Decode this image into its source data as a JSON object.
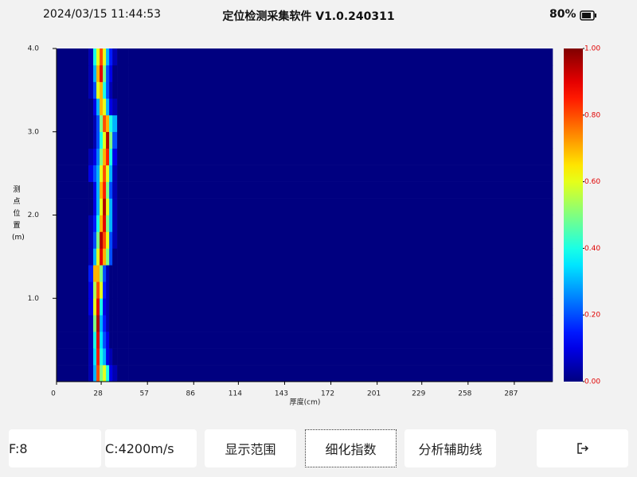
{
  "status_bar": {
    "datetime": "2024/03/15 11:44:53",
    "title": "定位检测采集软件 V1.0.240311",
    "battery": "80%"
  },
  "chart_data": {
    "type": "heatmap",
    "xlabel": "厚度(cm)",
    "ylabel": "测点位置(m)",
    "xlim": [
      0,
      311
    ],
    "xticks": [
      0,
      28,
      57,
      86,
      114,
      143,
      172,
      201,
      229,
      258,
      287
    ],
    "ylim": [
      0,
      4
    ],
    "yticks": [
      {
        "value": 1,
        "label": "1.0"
      },
      {
        "value": 2,
        "label": "2.0"
      },
      {
        "value": 3,
        "label": "3.0"
      },
      {
        "value": 4,
        "label": "4.0"
      }
    ],
    "xbins": [
      0,
      20,
      23,
      25,
      27,
      29,
      31,
      33,
      35,
      38,
      45,
      311
    ],
    "ybins": [
      0,
      0.2,
      0.4,
      0.6,
      0.8,
      1.0,
      1.2,
      1.4,
      1.6,
      1.8,
      2.0,
      2.2,
      2.4,
      2.6,
      2.8,
      3.0,
      3.2,
      3.4,
      3.6,
      3.8,
      4.0
    ],
    "values": [
      [
        0,
        0.05,
        0.3,
        0.8,
        0.5,
        0.6,
        0.4,
        0.1,
        0.05,
        0,
        0
      ],
      [
        0,
        0.05,
        0.35,
        0.85,
        0.4,
        0.3,
        0.1,
        0.05,
        0,
        0,
        0
      ],
      [
        0,
        0.05,
        0.4,
        0.9,
        0.35,
        0.2,
        0.1,
        0,
        0,
        0,
        0
      ],
      [
        0,
        0.05,
        0.5,
        0.95,
        0.3,
        0.15,
        0.05,
        0,
        0,
        0,
        0
      ],
      [
        0,
        0.1,
        0.6,
        0.9,
        0.4,
        0.1,
        0.05,
        0,
        0,
        0,
        0
      ],
      [
        0,
        0.1,
        0.55,
        0.8,
        0.6,
        0.15,
        0.05,
        0,
        0,
        0,
        0
      ],
      [
        0,
        0.15,
        0.7,
        0.7,
        0.5,
        0.2,
        0.05,
        0,
        0,
        0,
        0
      ],
      [
        0,
        0.05,
        0.3,
        0.6,
        0.9,
        0.7,
        0.5,
        0.2,
        0,
        0,
        0
      ],
      [
        0,
        0.05,
        0.2,
        0.5,
        0.95,
        0.8,
        0.6,
        0.2,
        0.05,
        0,
        0
      ],
      [
        0,
        0.05,
        0.15,
        0.4,
        0.7,
        0.9,
        0.5,
        0.3,
        0.05,
        0,
        0
      ],
      [
        0,
        0,
        0.1,
        0.3,
        0.6,
        0.95,
        0.6,
        0.3,
        0.05,
        0,
        0
      ],
      [
        0,
        0,
        0.1,
        0.3,
        0.7,
        0.85,
        0.5,
        0.2,
        0.05,
        0,
        0
      ],
      [
        0,
        0.1,
        0.2,
        0.3,
        0.6,
        0.8,
        0.6,
        0.3,
        0.05,
        0,
        0
      ],
      [
        0,
        0.05,
        0.1,
        0.25,
        0.5,
        0.7,
        0.85,
        0.4,
        0.1,
        0,
        0
      ],
      [
        0,
        0,
        0.05,
        0.2,
        0.4,
        0.6,
        0.95,
        0.5,
        0.2,
        0,
        0
      ],
      [
        0,
        0,
        0.05,
        0.2,
        0.5,
        0.8,
        0.7,
        0.4,
        0.3,
        0,
        0
      ],
      [
        0,
        0,
        0.1,
        0.3,
        0.7,
        0.6,
        0.3,
        0.1,
        0.05,
        0,
        0
      ],
      [
        0,
        0.05,
        0.2,
        0.6,
        0.7,
        0.4,
        0.2,
        0.05,
        0,
        0,
        0
      ],
      [
        0,
        0.05,
        0.3,
        0.7,
        0.9,
        0.5,
        0.2,
        0.1,
        0,
        0,
        0
      ],
      [
        0,
        0.05,
        0.4,
        0.6,
        0.8,
        0.6,
        0.3,
        0.15,
        0.05,
        0,
        0
      ]
    ],
    "colorbar": {
      "lim": [
        0,
        1
      ],
      "ticks": [
        {
          "value": 0,
          "label": "0.00"
        },
        {
          "value": 0.2,
          "label": "0.20"
        },
        {
          "value": 0.4,
          "label": "0.40"
        },
        {
          "value": 0.6,
          "label": "0.60"
        },
        {
          "value": 0.8,
          "label": "0.80"
        },
        {
          "value": 1,
          "label": "1.00"
        }
      ]
    }
  },
  "buttons": [
    "F:8",
    "C:4200m/s",
    "显示范围",
    "细化指数",
    "分析辅助线"
  ]
}
